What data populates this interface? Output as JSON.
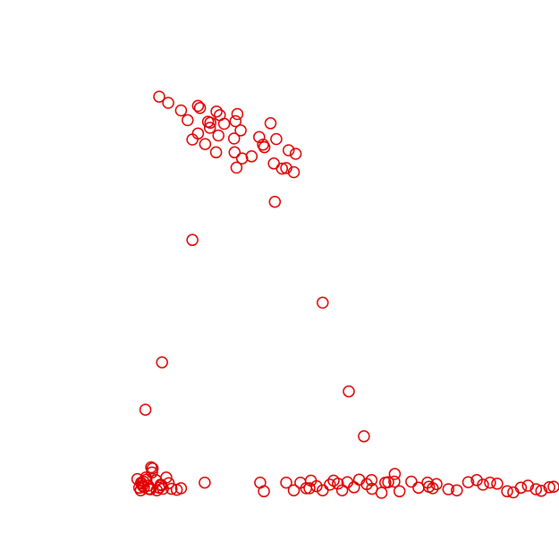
{
  "chart_data": {
    "type": "scatter",
    "title": "",
    "xlabel": "",
    "ylabel": "",
    "grid": false,
    "legend": "none",
    "axes_visible": false,
    "xlim": [
      0,
      100
    ],
    "ylim": [
      0,
      100
    ],
    "marker": "open-circle",
    "color": "#e00000",
    "series": [
      {
        "name": "",
        "points": [
          [
            16.6,
            89.8
          ],
          [
            18.5,
            88.6
          ],
          [
            21.2,
            87.1
          ],
          [
            24.8,
            88.0
          ],
          [
            28.7,
            86.9
          ],
          [
            32.7,
            85.0
          ],
          [
            30.3,
            84.5
          ],
          [
            27.4,
            84.7
          ],
          [
            25.2,
            87.6
          ],
          [
            29.4,
            86.2
          ],
          [
            33.1,
            86.4
          ],
          [
            26.9,
            84.9
          ],
          [
            22.6,
            85.2
          ],
          [
            27.3,
            83.7
          ],
          [
            33.8,
            83.2
          ],
          [
            37.7,
            81.9
          ],
          [
            40.1,
            84.6
          ],
          [
            38.8,
            79.9
          ],
          [
            32.4,
            81.6
          ],
          [
            29.1,
            82.2
          ],
          [
            26.3,
            80.5
          ],
          [
            41.3,
            81.5
          ],
          [
            43.9,
            79.3
          ],
          [
            45.4,
            78.6
          ],
          [
            45.0,
            75.0
          ],
          [
            42.5,
            75.7
          ],
          [
            36.1,
            78.1
          ],
          [
            32.5,
            78.9
          ],
          [
            28.6,
            78.9
          ],
          [
            24.8,
            82.6
          ],
          [
            38.5,
            80.4
          ],
          [
            40.8,
            76.7
          ],
          [
            43.4,
            75.8
          ],
          [
            23.6,
            81.4
          ],
          [
            32.9,
            75.9
          ],
          [
            34.1,
            77.7
          ],
          [
            41.0,
            69.2
          ],
          [
            23.6,
            61.7
          ],
          [
            51.1,
            49.4
          ],
          [
            17.2,
            37.7
          ],
          [
            13.7,
            28.4
          ],
          [
            56.6,
            32.0
          ],
          [
            59.8,
            23.2
          ],
          [
            12.0,
            14.8
          ],
          [
            12.4,
            13.1
          ],
          [
            12.8,
            14.1
          ],
          [
            13.4,
            13.2
          ],
          [
            14.4,
            12.9
          ],
          [
            15.9,
            14.6
          ],
          [
            16.9,
            13.7
          ],
          [
            17.4,
            12.9
          ],
          [
            18.6,
            14.0
          ],
          [
            19.2,
            12.9
          ],
          [
            20.3,
            12.7
          ],
          [
            21.2,
            13.0
          ],
          [
            17.1,
            13.6
          ],
          [
            16.1,
            12.6
          ],
          [
            13.8,
            15.1
          ],
          [
            14.3,
            13.5
          ],
          [
            15.1,
            16.1
          ],
          [
            12.9,
            13.9
          ],
          [
            14.8,
            12.8
          ],
          [
            13.9,
            14.7
          ],
          [
            18.1,
            15.1
          ],
          [
            14.9,
            17.1
          ],
          [
            15.2,
            16.9
          ],
          [
            16.6,
            13.1
          ],
          [
            13.3,
            14.3
          ],
          [
            12.7,
            12.6
          ],
          [
            13.1,
            13.5
          ],
          [
            14.6,
            12.8
          ],
          [
            26.2,
            14.1
          ],
          [
            37.9,
            14.1
          ],
          [
            38.7,
            12.4
          ],
          [
            43.4,
            14.1
          ],
          [
            45.0,
            12.6
          ],
          [
            46.4,
            14.1
          ],
          [
            47.6,
            13.0
          ],
          [
            48.6,
            14.5
          ],
          [
            49.8,
            13.4
          ],
          [
            51.1,
            12.6
          ],
          [
            52.6,
            13.7
          ],
          [
            54.3,
            13.9
          ],
          [
            55.2,
            12.6
          ],
          [
            56.3,
            14.2
          ],
          [
            57.7,
            13.2
          ],
          [
            58.8,
            14.7
          ],
          [
            60.4,
            13.8
          ],
          [
            61.5,
            12.9
          ],
          [
            63.5,
            12.1
          ],
          [
            64.9,
            14.2
          ],
          [
            66.2,
            14.3
          ],
          [
            67.3,
            12.4
          ],
          [
            69.8,
            14.3
          ],
          [
            71.3,
            13.1
          ],
          [
            73.2,
            14.1
          ],
          [
            74.3,
            13.0
          ],
          [
            75.1,
            13.8
          ],
          [
            77.6,
            12.8
          ],
          [
            79.4,
            12.6
          ],
          [
            81.8,
            14.2
          ],
          [
            83.6,
            14.6
          ],
          [
            84.9,
            13.7
          ],
          [
            86.4,
            14.1
          ],
          [
            87.9,
            13.9
          ],
          [
            90.0,
            12.4
          ],
          [
            91.3,
            12.2
          ],
          [
            92.9,
            13.1
          ],
          [
            94.4,
            13.5
          ],
          [
            96.1,
            12.8
          ],
          [
            97.2,
            12.5
          ],
          [
            98.9,
            13.2
          ],
          [
            100.0,
            13.3
          ],
          [
            48.3,
            13.0
          ],
          [
            53.4,
            14.5
          ],
          [
            61.4,
            14.6
          ],
          [
            64.3,
            14.1
          ],
          [
            66.3,
            15.8
          ],
          [
            73.5,
            13.3
          ]
        ]
      }
    ]
  }
}
